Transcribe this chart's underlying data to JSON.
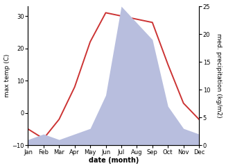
{
  "months": [
    "Jan",
    "Feb",
    "Mar",
    "Apr",
    "May",
    "Jun",
    "Jul",
    "Aug",
    "Sep",
    "Oct",
    "Nov",
    "Dec"
  ],
  "month_indices": [
    0,
    1,
    2,
    3,
    4,
    5,
    6,
    7,
    8,
    9,
    10,
    11
  ],
  "temperature": [
    -5,
    -8,
    -2,
    8,
    22,
    31,
    30,
    29,
    28,
    15,
    3,
    -2
  ],
  "precipitation": [
    1,
    2,
    1,
    2,
    3,
    9,
    25,
    22,
    19,
    7,
    3,
    2
  ],
  "temp_color": "#cc3333",
  "precip_fill_color": "#b8bede",
  "ylabel_left": "max temp (C)",
  "ylabel_right": "med. precipitation (kg/m2)",
  "xlabel": "date (month)",
  "ylim_left": [
    -10,
    33
  ],
  "ylim_right": [
    0,
    25
  ],
  "bg_color": "#ffffff",
  "tick_fontsize": 6,
  "label_fontsize": 6.5,
  "xlabel_fontsize": 7
}
